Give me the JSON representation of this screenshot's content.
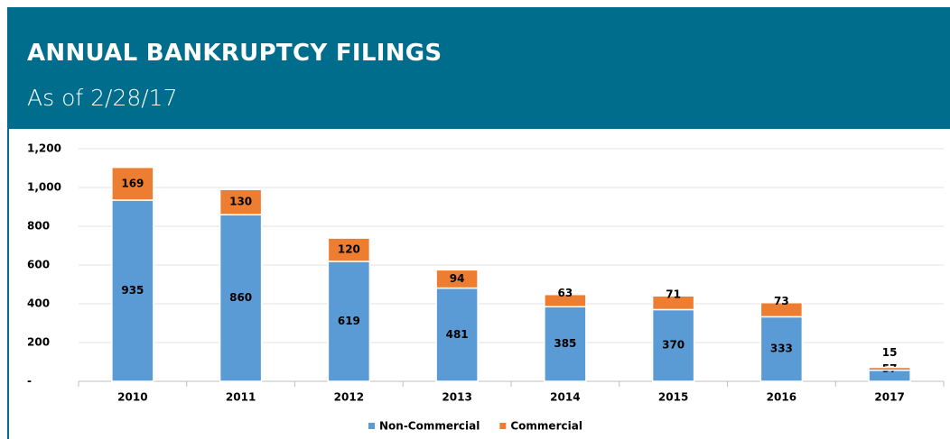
{
  "chart_data": {
    "type": "stacked-bar",
    "title": "ANNUAL BANKRUPTCY FILINGS",
    "subtitle": "As of 2/28/17",
    "categories": [
      "2010",
      "2011",
      "2012",
      "2013",
      "2014",
      "2015",
      "2016",
      "2017"
    ],
    "series": [
      {
        "name": "Non-Commercial",
        "color": "#5b9bd5",
        "values": [
          935,
          860,
          619,
          481,
          385,
          370,
          333,
          57
        ]
      },
      {
        "name": "Commercial",
        "color": "#ed7d31",
        "values": [
          169,
          130,
          120,
          94,
          63,
          71,
          73,
          15
        ]
      }
    ],
    "ylim": [
      0,
      1200
    ],
    "yticks": [
      {
        "value": 0,
        "label": "-"
      },
      200,
      400,
      600,
      800,
      {
        "value": 1000,
        "label": "1,000"
      },
      {
        "value": 1200,
        "label": "1,200"
      }
    ],
    "grid": true,
    "legend": "bottom"
  }
}
